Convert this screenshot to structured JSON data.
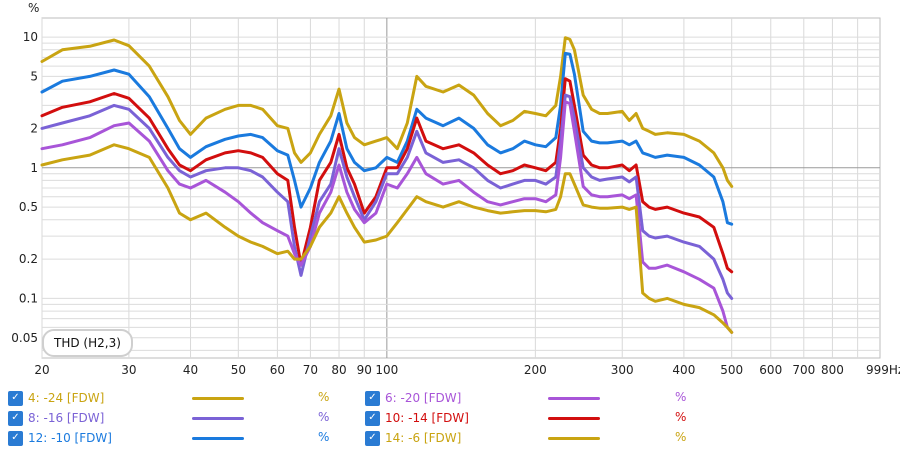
{
  "chart_data": {
    "type": "line",
    "x_scale": "log",
    "y_scale": "log",
    "y_unit": "%",
    "x_unit": "Hz",
    "xlim": [
      20,
      999
    ],
    "ylim": [
      0.035,
      14
    ],
    "grid": true,
    "y_ticks": [
      "10",
      "5",
      "2",
      "1",
      "0.5",
      "0.2",
      "0.1",
      "0.05"
    ],
    "x_ticks": [
      "20",
      "30",
      "40",
      "50",
      "60",
      "70",
      "80",
      "90",
      "100",
      "200",
      "300",
      "400",
      "500",
      "600",
      "700",
      "800",
      "999Hz"
    ],
    "annotation": "THD (H2,3)",
    "series": [
      {
        "name": "14: -6 [FDW]",
        "color": "#c9a412",
        "x": [
          20,
          22,
          25,
          28,
          30,
          33,
          36,
          38,
          40,
          43,
          47,
          50,
          53,
          56,
          60,
          63,
          65,
          67,
          70,
          73,
          77,
          80,
          83,
          86,
          90,
          95,
          100,
          105,
          110,
          115,
          120,
          130,
          140,
          150,
          160,
          170,
          180,
          190,
          200,
          210,
          220,
          225,
          230,
          235,
          240,
          250,
          260,
          270,
          280,
          300,
          310,
          320,
          330,
          340,
          350,
          370,
          400,
          430,
          460,
          480,
          490,
          500
        ],
        "y": [
          6.5,
          8,
          8.5,
          9.5,
          8.6,
          6,
          3.5,
          2.3,
          1.8,
          2.4,
          2.8,
          3,
          3,
          2.8,
          2.1,
          2,
          1.3,
          1.1,
          1.3,
          1.8,
          2.5,
          4,
          2.2,
          1.7,
          1.5,
          1.6,
          1.7,
          1.4,
          2.2,
          5,
          4.2,
          3.8,
          4.3,
          3.6,
          2.6,
          2.1,
          2.3,
          2.7,
          2.6,
          2.5,
          3,
          5,
          9.9,
          9.6,
          8,
          3.6,
          2.8,
          2.6,
          2.6,
          2.7,
          2.3,
          2.6,
          2,
          1.9,
          1.8,
          1.85,
          1.8,
          1.6,
          1.3,
          1,
          0.8,
          0.72
        ]
      },
      {
        "name": "12: -10 [FDW]",
        "color": "#1a7ade",
        "x": [
          20,
          22,
          25,
          28,
          30,
          33,
          36,
          38,
          40,
          43,
          47,
          50,
          53,
          56,
          60,
          63,
          65,
          67,
          70,
          73,
          77,
          80,
          83,
          86,
          90,
          95,
          100,
          105,
          110,
          115,
          120,
          130,
          140,
          150,
          160,
          170,
          180,
          190,
          200,
          210,
          220,
          225,
          230,
          235,
          240,
          250,
          260,
          270,
          280,
          300,
          310,
          320,
          330,
          340,
          350,
          370,
          400,
          430,
          460,
          480,
          490,
          500
        ],
        "y": [
          3.8,
          4.6,
          5,
          5.6,
          5.2,
          3.5,
          2,
          1.4,
          1.2,
          1.45,
          1.65,
          1.75,
          1.8,
          1.7,
          1.35,
          1.25,
          0.8,
          0.5,
          0.7,
          1.1,
          1.6,
          2.6,
          1.4,
          1.1,
          0.95,
          1,
          1.2,
          1.1,
          1.6,
          2.8,
          2.4,
          2.1,
          2.4,
          2,
          1.5,
          1.3,
          1.4,
          1.6,
          1.5,
          1.45,
          1.7,
          3,
          7.5,
          7.4,
          5.2,
          1.9,
          1.6,
          1.55,
          1.55,
          1.6,
          1.5,
          1.6,
          1.3,
          1.25,
          1.2,
          1.25,
          1.2,
          1.05,
          0.85,
          0.55,
          0.38,
          0.37
        ]
      },
      {
        "name": "10: -14 [FDW]",
        "color": "#d20e0e",
        "x": [
          20,
          22,
          25,
          28,
          30,
          33,
          36,
          38,
          40,
          43,
          47,
          50,
          53,
          56,
          60,
          63,
          65,
          67,
          70,
          73,
          77,
          80,
          83,
          86,
          90,
          95,
          100,
          105,
          110,
          115,
          120,
          130,
          140,
          150,
          160,
          170,
          180,
          190,
          200,
          210,
          220,
          225,
          230,
          235,
          240,
          250,
          260,
          270,
          280,
          300,
          310,
          320,
          330,
          340,
          350,
          370,
          400,
          430,
          460,
          480,
          490,
          500
        ],
        "y": [
          2.5,
          2.9,
          3.2,
          3.7,
          3.4,
          2.4,
          1.4,
          1.05,
          0.95,
          1.15,
          1.3,
          1.35,
          1.3,
          1.2,
          0.9,
          0.8,
          0.35,
          0.18,
          0.35,
          0.8,
          1.1,
          1.8,
          1,
          0.75,
          0.45,
          0.6,
          1,
          1,
          1.4,
          2.4,
          1.6,
          1.4,
          1.5,
          1.3,
          1.05,
          0.9,
          0.95,
          1.05,
          1.0,
          0.95,
          1.1,
          2,
          4.8,
          4.6,
          3,
          1.25,
          1.05,
          1,
          1.0,
          1.05,
          0.95,
          1.05,
          0.55,
          0.5,
          0.48,
          0.5,
          0.45,
          0.42,
          0.35,
          0.22,
          0.17,
          0.16
        ]
      },
      {
        "name": "8: -16 [FDW]",
        "color": "#7a62d6",
        "x": [
          20,
          22,
          25,
          28,
          30,
          33,
          36,
          38,
          40,
          43,
          47,
          50,
          53,
          56,
          60,
          63,
          65,
          67,
          70,
          73,
          77,
          80,
          83,
          86,
          90,
          95,
          100,
          105,
          110,
          115,
          120,
          130,
          140,
          150,
          160,
          170,
          180,
          190,
          200,
          210,
          220,
          225,
          230,
          235,
          240,
          250,
          260,
          270,
          280,
          300,
          310,
          320,
          330,
          340,
          350,
          370,
          400,
          430,
          460,
          480,
          490,
          500
        ],
        "y": [
          2,
          2.2,
          2.5,
          3,
          2.8,
          2,
          1.2,
          0.95,
          0.85,
          0.95,
          1,
          1,
          0.95,
          0.85,
          0.65,
          0.55,
          0.25,
          0.15,
          0.3,
          0.55,
          0.75,
          1.4,
          0.85,
          0.6,
          0.4,
          0.55,
          0.9,
          0.9,
          1.2,
          1.9,
          1.3,
          1.1,
          1.15,
          1,
          0.8,
          0.7,
          0.75,
          0.8,
          0.8,
          0.75,
          0.85,
          1.6,
          3.6,
          3.5,
          2.4,
          1,
          0.85,
          0.8,
          0.82,
          0.85,
          0.78,
          0.85,
          0.33,
          0.3,
          0.29,
          0.3,
          0.27,
          0.25,
          0.2,
          0.14,
          0.11,
          0.1
        ]
      },
      {
        "name": "6: -20 [FDW]",
        "color": "#a855d8",
        "x": [
          20,
          22,
          25,
          28,
          30,
          33,
          36,
          38,
          40,
          43,
          47,
          50,
          53,
          56,
          60,
          63,
          65,
          67,
          70,
          73,
          77,
          80,
          83,
          86,
          90,
          95,
          100,
          105,
          110,
          115,
          120,
          130,
          140,
          150,
          160,
          170,
          180,
          190,
          200,
          210,
          220,
          225,
          230,
          235,
          240,
          250,
          260,
          270,
          280,
          300,
          310,
          320,
          330,
          340,
          350,
          370,
          400,
          430,
          460,
          480,
          490,
          500
        ],
        "y": [
          1.4,
          1.5,
          1.7,
          2.1,
          2.2,
          1.6,
          0.95,
          0.75,
          0.7,
          0.8,
          0.65,
          0.55,
          0.45,
          0.38,
          0.33,
          0.3,
          0.22,
          0.18,
          0.25,
          0.45,
          0.65,
          1.05,
          0.65,
          0.48,
          0.38,
          0.45,
          0.75,
          0.7,
          0.9,
          1.2,
          0.9,
          0.75,
          0.8,
          0.65,
          0.55,
          0.52,
          0.55,
          0.58,
          0.58,
          0.55,
          0.62,
          1.2,
          3.2,
          3.1,
          1.9,
          0.72,
          0.62,
          0.6,
          0.6,
          0.62,
          0.58,
          0.62,
          0.19,
          0.17,
          0.17,
          0.18,
          0.16,
          0.14,
          0.12,
          0.08,
          0.06,
          0.055
        ]
      },
      {
        "name": "4: -24 [FDW]",
        "color": "#c9a412",
        "x": [
          20,
          22,
          25,
          28,
          30,
          33,
          36,
          38,
          40,
          43,
          47,
          50,
          53,
          56,
          60,
          63,
          65,
          67,
          70,
          73,
          77,
          80,
          83,
          86,
          90,
          95,
          100,
          105,
          110,
          115,
          120,
          130,
          140,
          150,
          160,
          170,
          180,
          190,
          200,
          210,
          220,
          225,
          230,
          235,
          240,
          250,
          260,
          270,
          280,
          300,
          310,
          320,
          330,
          340,
          350,
          370,
          400,
          430,
          460,
          480,
          490,
          500
        ],
        "y": [
          1.05,
          1.15,
          1.25,
          1.5,
          1.4,
          1.2,
          0.7,
          0.45,
          0.4,
          0.45,
          0.35,
          0.3,
          0.27,
          0.25,
          0.22,
          0.23,
          0.2,
          0.2,
          0.25,
          0.35,
          0.45,
          0.6,
          0.45,
          0.35,
          0.27,
          0.28,
          0.3,
          0.38,
          0.48,
          0.6,
          0.55,
          0.5,
          0.55,
          0.5,
          0.47,
          0.45,
          0.46,
          0.47,
          0.47,
          0.46,
          0.48,
          0.6,
          0.9,
          0.9,
          0.75,
          0.52,
          0.5,
          0.49,
          0.49,
          0.5,
          0.48,
          0.5,
          0.11,
          0.1,
          0.095,
          0.1,
          0.09,
          0.085,
          0.075,
          0.065,
          0.06,
          0.055
        ]
      }
    ]
  },
  "legend": {
    "items": [
      {
        "label": "4: -24 [FDW]",
        "color": "#c9a412",
        "unit": "%"
      },
      {
        "label": "6: -20 [FDW]",
        "color": "#a855d8",
        "unit": "%"
      },
      {
        "label": "8: -16 [FDW]",
        "color": "#7a62d6",
        "unit": "%"
      },
      {
        "label": "10: -14 [FDW]",
        "color": "#d20e0e",
        "unit": "%"
      },
      {
        "label": "12: -10 [FDW]",
        "color": "#1a7ade",
        "unit": "%"
      },
      {
        "label": "14: -6 [FDW]",
        "color": "#c9a412",
        "unit": "%"
      }
    ]
  }
}
